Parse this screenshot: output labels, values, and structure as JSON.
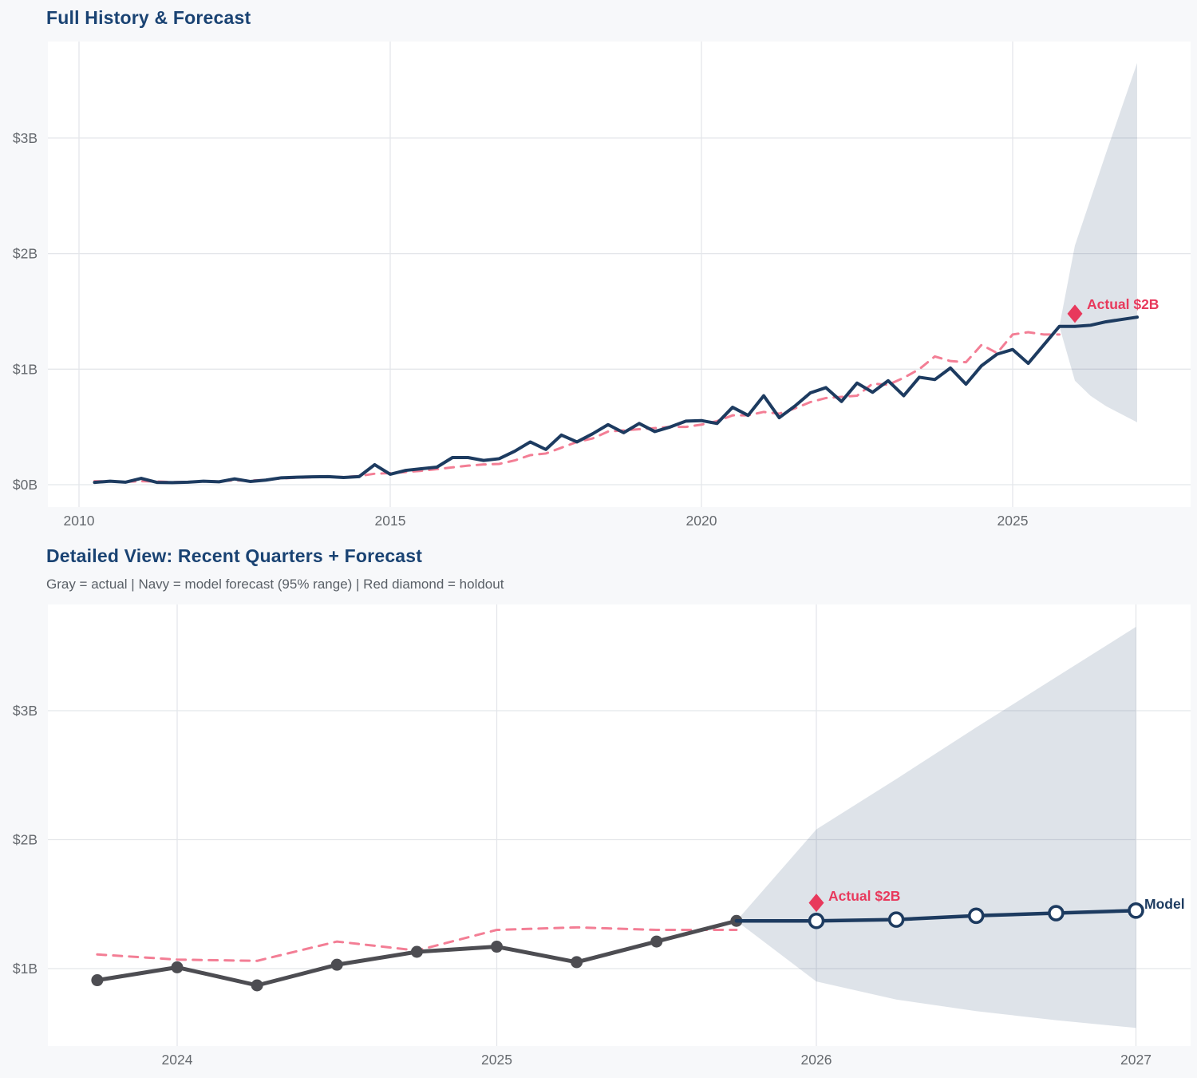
{
  "page": {
    "chart1_title": "Full History & Forecast",
    "chart2_title": "Detailed View: Recent Quarters + Forecast",
    "chart2_subtitle": "Gray = actual  |  Navy = model forecast (95% range)  |  Red diamond = holdout",
    "holdout_label": "Actual $2B",
    "model_label": "Model"
  },
  "colors": {
    "navy_line": "#1d3b60",
    "pink_dashed": "#f37e95",
    "red_accent": "#e8395c",
    "gray_actual": "#4d4d52",
    "band_fill": "rgba(33,64,105,0.15)",
    "gridline": "#e4e6ea",
    "tick_text": "#65696e",
    "plot_bg": "#ffffff",
    "page_bg": "#f7f8fa"
  },
  "chart_data": [
    {
      "id": "full-history",
      "type": "line",
      "title": "Full History & Forecast",
      "xlabel": "",
      "ylabel": "",
      "x_start": 2010.25,
      "x_step": 0.25,
      "xlim": [
        2009.5,
        2027.9
      ],
      "ylim": [
        0,
        3.85
      ],
      "yticks": [
        {
          "v": 0,
          "label": "$0B"
        },
        {
          "v": 1,
          "label": "$1B"
        },
        {
          "v": 2,
          "label": "$2B"
        },
        {
          "v": 3,
          "label": "$3B"
        }
      ],
      "xticks": [
        {
          "v": 2010,
          "label": "2010"
        },
        {
          "v": 2015,
          "label": "2015"
        },
        {
          "v": 2020,
          "label": "2020"
        },
        {
          "v": 2025,
          "label": "2025"
        }
      ],
      "series": [
        {
          "name": "history (navy solid)",
          "values": [
            0.02,
            0.03,
            0.022,
            0.055,
            0.02,
            0.018,
            0.022,
            0.03,
            0.025,
            0.05,
            0.028,
            0.04,
            0.06,
            0.065,
            0.068,
            0.07,
            0.062,
            0.07,
            0.173,
            0.09,
            0.124,
            0.138,
            0.152,
            0.235,
            0.235,
            0.21,
            0.225,
            0.29,
            0.37,
            0.305,
            0.43,
            0.37,
            0.44,
            0.52,
            0.45,
            0.53,
            0.46,
            0.5,
            0.55,
            0.555,
            0.53,
            0.67,
            0.6,
            0.77,
            0.58,
            0.68,
            0.795,
            0.84,
            0.72,
            0.88,
            0.8,
            0.9,
            0.77,
            0.93,
            0.91,
            1.01,
            0.87,
            1.03,
            1.13,
            1.17,
            1.05,
            1.21,
            1.37
          ]
        },
        {
          "name": "baseline (pink dashed)",
          "values": [
            0.03,
            0.028,
            0.025,
            0.03,
            0.028,
            0.022,
            0.025,
            0.028,
            0.03,
            0.038,
            0.035,
            0.042,
            0.055,
            0.06,
            0.065,
            0.068,
            0.066,
            0.075,
            0.095,
            0.1,
            0.11,
            0.12,
            0.135,
            0.15,
            0.165,
            0.175,
            0.18,
            0.21,
            0.256,
            0.27,
            0.32,
            0.37,
            0.4,
            0.46,
            0.47,
            0.48,
            0.49,
            0.5,
            0.5,
            0.52,
            0.55,
            0.6,
            0.6,
            0.63,
            0.615,
            0.66,
            0.715,
            0.75,
            0.76,
            0.77,
            0.875,
            0.865,
            0.925,
            1.0,
            1.11,
            1.07,
            1.06,
            1.21,
            1.14,
            1.3,
            1.32,
            1.3,
            1.3
          ]
        }
      ],
      "forecast": {
        "x": [
          2025.75,
          2026.0,
          2026.25,
          2026.5,
          2026.75,
          2027.0
        ],
        "values": [
          1.37,
          1.37,
          1.38,
          1.41,
          1.43,
          1.45
        ]
      },
      "band": {
        "x": [
          2025.75,
          2026.0,
          2026.25,
          2026.5,
          2026.75,
          2027.0
        ],
        "upper": [
          1.37,
          2.07,
          2.47,
          2.87,
          3.26,
          3.65
        ],
        "lower": [
          1.37,
          0.9,
          0.77,
          0.68,
          0.61,
          0.54
        ]
      },
      "annotation": {
        "label": "Actual $2B",
        "x": 2026.0,
        "y": 1.48
      }
    },
    {
      "id": "detailed-view",
      "type": "line",
      "title": "Detailed View: Recent Quarters + Forecast",
      "subtitle": "Gray = actual | Navy = model forecast (95% range) | Red diamond = holdout",
      "xlabel": "",
      "ylabel": "",
      "x_start": 2023.75,
      "x_step": 0.25,
      "xlim": [
        2023.6,
        2027.17
      ],
      "ylim": [
        0.45,
        3.8
      ],
      "yticks": [
        {
          "v": 1,
          "label": "$1B"
        },
        {
          "v": 2,
          "label": "$2B"
        },
        {
          "v": 3,
          "label": "$3B"
        }
      ],
      "xticks": [
        {
          "v": 2024,
          "label": "2024"
        },
        {
          "v": 2025,
          "label": "2025"
        },
        {
          "v": 2026,
          "label": "2026"
        },
        {
          "v": 2027,
          "label": "2027"
        }
      ],
      "series": [
        {
          "name": "actual (gray, filled dots)",
          "values": [
            0.91,
            1.01,
            0.87,
            1.03,
            1.13,
            1.17,
            1.05,
            1.21,
            1.37
          ]
        },
        {
          "name": "baseline (pink dashed)",
          "values": [
            1.11,
            1.07,
            1.06,
            1.21,
            1.14,
            1.3,
            1.32,
            1.3,
            1.3
          ]
        }
      ],
      "forecast": {
        "x": [
          2025.75,
          2026.0,
          2026.25,
          2026.5,
          2026.75,
          2027.0
        ],
        "values": [
          1.37,
          1.37,
          1.38,
          1.41,
          1.43,
          1.45
        ],
        "marker": "open-circle",
        "label": "Model"
      },
      "band": {
        "x": [
          2025.75,
          2026.0,
          2026.25,
          2026.5,
          2026.75,
          2027.0
        ],
        "upper": [
          1.37,
          2.08,
          2.47,
          2.87,
          3.26,
          3.65
        ],
        "lower": [
          1.37,
          0.9,
          0.76,
          0.67,
          0.6,
          0.54
        ]
      },
      "annotation": {
        "label": "Actual $2B",
        "x": 2026.0,
        "y": 1.51
      }
    }
  ]
}
